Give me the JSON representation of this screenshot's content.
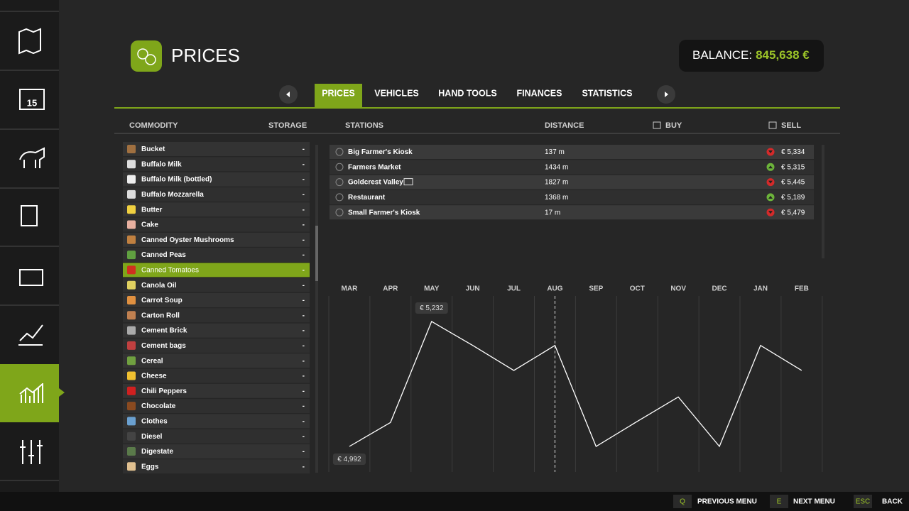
{
  "header": {
    "title": "PRICES",
    "balance_label": "BALANCE:",
    "balance_value": "845,638 €"
  },
  "tabs": [
    "PRICES",
    "VEHICLES",
    "HAND TOOLS",
    "FINANCES",
    "STATISTICS"
  ],
  "columns": {
    "commodity": "COMMODITY",
    "storage": "STORAGE",
    "stations": "STATIONS",
    "distance": "DISTANCE",
    "buy": "BUY",
    "sell": "SELL"
  },
  "commodities": [
    {
      "name": "Bucket",
      "storage": "-"
    },
    {
      "name": "Buffalo Milk",
      "storage": "-"
    },
    {
      "name": "Buffalo Milk (bottled)",
      "storage": "-"
    },
    {
      "name": "Buffalo Mozzarella",
      "storage": "-"
    },
    {
      "name": "Butter",
      "storage": "-"
    },
    {
      "name": "Cake",
      "storage": "-"
    },
    {
      "name": "Canned Oyster Mushrooms",
      "storage": "-"
    },
    {
      "name": "Canned Peas",
      "storage": "-"
    },
    {
      "name": "Canned Tomatoes",
      "storage": "-",
      "selected": true
    },
    {
      "name": "Canola Oil",
      "storage": "-"
    },
    {
      "name": "Carrot Soup",
      "storage": "-"
    },
    {
      "name": "Carton Roll",
      "storage": "-"
    },
    {
      "name": "Cement Brick",
      "storage": "-"
    },
    {
      "name": "Cement bags",
      "storage": "-"
    },
    {
      "name": "Cereal",
      "storage": "-"
    },
    {
      "name": "Cheese",
      "storage": "-"
    },
    {
      "name": "Chili Peppers",
      "storage": "-"
    },
    {
      "name": "Chocolate",
      "storage": "-"
    },
    {
      "name": "Clothes",
      "storage": "-"
    },
    {
      "name": "Diesel",
      "storage": "-"
    },
    {
      "name": "Digestate",
      "storage": "-"
    },
    {
      "name": "Eggs",
      "storage": "-"
    }
  ],
  "stations": [
    {
      "name": "Big Farmer's Kiosk",
      "distance": "137 m",
      "trend": "down",
      "sell": "€ 5,334"
    },
    {
      "name": "Farmers Market",
      "distance": "1434 m",
      "trend": "up",
      "sell": "€ 5,315"
    },
    {
      "name": "Goldcrest Valley",
      "distance": "1827 m",
      "trend": "down",
      "sell": "€ 5,445"
    },
    {
      "name": "Restaurant",
      "distance": "1368 m",
      "trend": "up",
      "sell": "€ 5,189"
    },
    {
      "name": "Small Farmer's Kiosk",
      "distance": "17 m",
      "trend": "down",
      "sell": "€ 5,479"
    }
  ],
  "chart_data": {
    "type": "line",
    "color": "#ffffff",
    "categories": [
      "MAR",
      "APR",
      "MAY",
      "JUN",
      "JUL",
      "AUG",
      "SEP",
      "OCT",
      "NOV",
      "DEC",
      "JAN",
      "FEB"
    ],
    "values": [
      4992,
      5038,
      5232,
      5186,
      5138,
      5186,
      4992,
      5040,
      5087,
      4992,
      5186,
      5138
    ],
    "value_labels": [
      "€ 4,992",
      null,
      "€ 5,232",
      null,
      null,
      null,
      null,
      null,
      null,
      null,
      null,
      null
    ]
  },
  "footer": [
    {
      "key": "Q",
      "label": "PREVIOUS MENU"
    },
    {
      "key": "E",
      "label": "NEXT MENU"
    },
    {
      "key": "ESC",
      "label": "BACK"
    }
  ]
}
